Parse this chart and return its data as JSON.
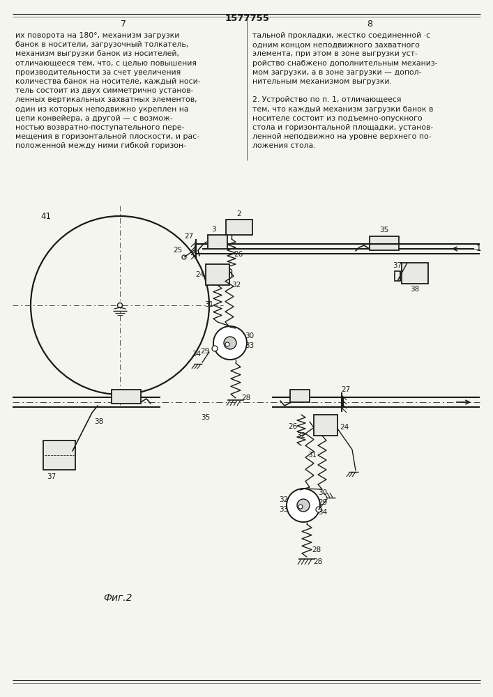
{
  "title": "1577755",
  "page_left": "7",
  "page_right": "8",
  "fig_label": "Фиг.2",
  "bg_color": "#f5f5f0",
  "text_color": "#1a1a1a",
  "line_color": "#1a1a1a",
  "text_left_lines": [
    "их поворота на 180°, механизм загрузки",
    "банок в носители, загрузочный толкатель,",
    "механизм выгрузки банок из носителей,",
    "отличающееся тем, что, с целью повышения",
    "производительности за счет увеличения",
    "количества банок на носителе, каждый носи-",
    "тель состоит из двух симметрично установ-",
    "ленных вертикальных захватных элементов,",
    "один из которых неподвижно укреплен на",
    "цепи конвейера, а другой — с возмож-",
    "ностью возвратно-поступательного пере-",
    "мещения в горизонтальной плоскости, и рас-",
    "положенной между ними гибкой горизон-"
  ],
  "text_right_lines": [
    "тальной прокладки, жестко соединенной ·с",
    "одним концом неподвижного захватного",
    "элемента, при этом в зоне выгрузки уст-",
    "ройство снабжено дополнительным механиз-",
    "мом загрузки, а в зоне загрузки — допол-",
    "нительным механизмом выгрузки.",
    "",
    "2. Устройство по п. 1, отличающееся",
    "тем, что каждый механизм загрузки банок в",
    "носителе состоит из подъемно-опускного",
    "стола и горизонтальной площадки, установ-",
    "ленной неподвижно на уровне верхнего по-",
    "ложения стола."
  ]
}
